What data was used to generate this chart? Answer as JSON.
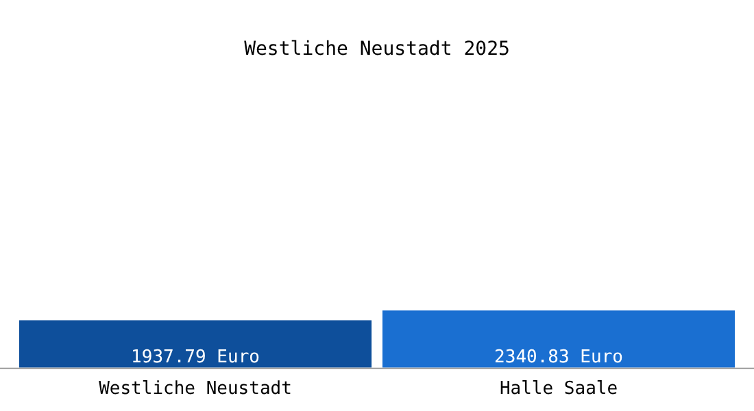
{
  "chart_data": {
    "type": "bar",
    "title": "Westliche Neustadt 2025",
    "categories": [
      "Westliche Neustadt",
      "Halle Saale"
    ],
    "values": [
      1937.79,
      2340.83
    ],
    "value_labels": [
      "1937.79 Euro",
      "2340.83 Euro"
    ],
    "colors": [
      "#0e4f9b",
      "#1a6fd1"
    ],
    "grid": false,
    "legend": false,
    "tick_labels": "x"
  }
}
